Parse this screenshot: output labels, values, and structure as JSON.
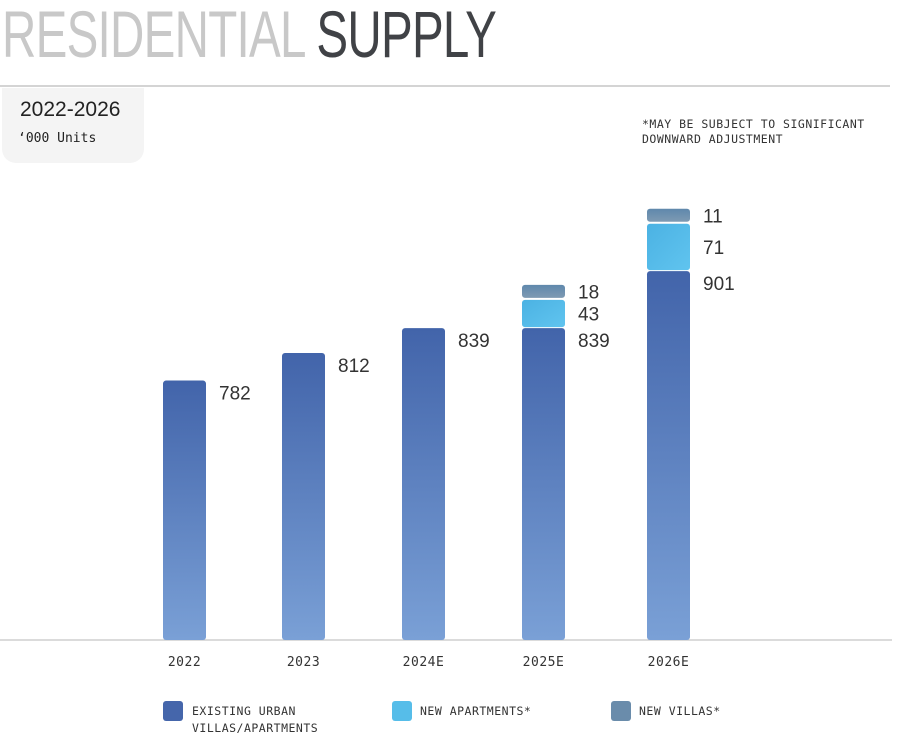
{
  "title": {
    "part1": "RESIDENTIAL",
    "part2": "SUPPLY"
  },
  "info": {
    "years": "2022-2026",
    "units": "‘000 Units"
  },
  "note": {
    "line1": "*MAY BE SUBJECT TO SIGNIFICANT",
    "line2": "DOWNWARD ADJUSTMENT"
  },
  "chart_data": {
    "type": "bar",
    "stacked": true,
    "categories": [
      "2022",
      "2023",
      "2024E",
      "2025E",
      "2026E"
    ],
    "series": [
      {
        "name": "EXISTING URBAN VILLAS/APARTMENTS",
        "values": [
          782,
          812,
          839,
          839,
          901
        ],
        "color": "#4566ab"
      },
      {
        "name": "NEW APARTMENTS*",
        "values": [
          null,
          null,
          null,
          43,
          71
        ],
        "color": "#56bde9"
      },
      {
        "name": "NEW VILLAS*",
        "values": [
          null,
          null,
          null,
          18,
          11
        ],
        "color": "#6a8cab"
      }
    ],
    "legend": "bottom",
    "grid": false
  },
  "legend": {
    "existing_line1": "EXISTING URBAN",
    "existing_line2": "VILLAS/APARTMENTS",
    "apartments": "NEW APARTMENTS*",
    "villas": "NEW VILLAS*"
  }
}
